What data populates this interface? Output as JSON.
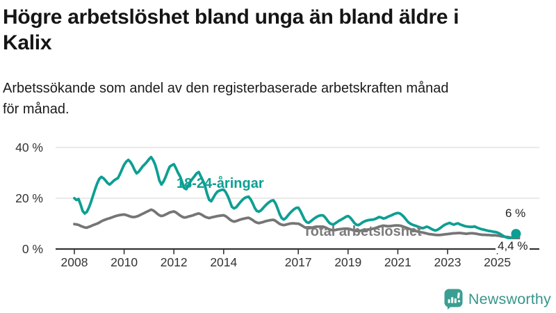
{
  "header": {
    "title_lines": [
      "Högre arbetslöshet bland unga än bland äldre i",
      "Kalix"
    ],
    "subtitle_lines": [
      "Arbetssökande som andel av den registerbaserade arbetskraften månad",
      "för månad."
    ]
  },
  "chart_data": {
    "type": "line",
    "unit": "%",
    "frequency": "monthly",
    "start": "2008-01",
    "end": "2025-10",
    "ylim": [
      0,
      40
    ],
    "y_ticks": [
      0,
      20,
      40
    ],
    "y_tick_suffix": " %",
    "x_ticks": [
      2008,
      2010,
      2012,
      2014,
      2017,
      2019,
      2021,
      2023,
      2025
    ],
    "grid_color": "#dcdcdc",
    "axis_color": "#333333",
    "tick_text_color": "#333333",
    "legend_position": "inline-labels",
    "series": [
      {
        "name": "Total arbetslöshet",
        "color": "#757575",
        "end_value": 4.4,
        "end_label": "4,4 %",
        "values": [
          9.8,
          9.7,
          9.5,
          9.1,
          8.8,
          8.5,
          8.4,
          8.7,
          9.0,
          9.4,
          9.7,
          10.0,
          10.4,
          10.9,
          11.3,
          11.6,
          11.9,
          12.1,
          12.4,
          12.7,
          13.0,
          13.2,
          13.4,
          13.5,
          13.6,
          13.4,
          13.1,
          12.8,
          12.6,
          12.6,
          12.8,
          13.1,
          13.5,
          13.9,
          14.3,
          14.7,
          15.1,
          15.5,
          15.2,
          14.6,
          13.9,
          13.3,
          13.0,
          13.2,
          13.6,
          14.0,
          14.4,
          14.6,
          14.8,
          14.4,
          13.8,
          13.2,
          12.7,
          12.4,
          12.5,
          12.8,
          13.0,
          13.2,
          13.5,
          13.8,
          14.0,
          13.7,
          13.2,
          12.7,
          12.4,
          12.2,
          12.4,
          12.6,
          12.8,
          13.0,
          13.1,
          13.2,
          13.3,
          12.9,
          12.3,
          11.6,
          11.1,
          10.8,
          11.0,
          11.3,
          11.6,
          11.8,
          12.0,
          12.2,
          12.3,
          11.9,
          11.4,
          10.8,
          10.4,
          10.2,
          10.4,
          10.6,
          10.9,
          11.1,
          11.3,
          11.4,
          11.5,
          11.1,
          10.5,
          9.9,
          9.6,
          9.4,
          9.6,
          9.8,
          10.0,
          10.1,
          10.1,
          10.0,
          10.0,
          9.6,
          9.1,
          8.6,
          8.3,
          8.2,
          8.3,
          8.5,
          8.7,
          8.8,
          8.8,
          8.8,
          8.8,
          8.5,
          8.1,
          7.7,
          7.5,
          7.4,
          7.5,
          7.7,
          7.8,
          7.9,
          8.0,
          8.0,
          8.0,
          7.8,
          7.5,
          7.3,
          7.1,
          7.1,
          7.2,
          7.4,
          7.5,
          7.6,
          7.7,
          7.8,
          8.0,
          8.2,
          8.5,
          8.8,
          9.0,
          9.2,
          9.1,
          9.0,
          9.0,
          9.1,
          9.2,
          9.3,
          9.3,
          9.2,
          9.0,
          8.7,
          8.4,
          8.1,
          7.8,
          7.5,
          7.2,
          7.0,
          6.8,
          6.6,
          6.5,
          6.3,
          6.1,
          5.9,
          5.8,
          5.7,
          5.6,
          5.5,
          5.5,
          5.6,
          5.7,
          5.8,
          5.9,
          6.0,
          6.1,
          6.2,
          6.2,
          6.3,
          6.3,
          6.2,
          6.1,
          6.0,
          6.1,
          6.2,
          6.2,
          6.1,
          6.0,
          5.8,
          5.7,
          5.6,
          5.6,
          5.5,
          5.5,
          5.4,
          5.4,
          5.4,
          5.3,
          5.2,
          5.0,
          4.9,
          4.8,
          4.7,
          4.6,
          4.5,
          4.4,
          4.4
        ]
      },
      {
        "name": "18-24-åringar",
        "color": "#0d9f93",
        "end_value": 6.0,
        "end_label": "6 %",
        "values": [
          20.0,
          19.3,
          19.7,
          17.5,
          15.0,
          14.0,
          14.6,
          16.3,
          18.5,
          21.0,
          23.5,
          25.8,
          27.6,
          28.4,
          27.9,
          27.0,
          26.0,
          25.4,
          26.1,
          26.9,
          27.5,
          27.9,
          29.5,
          31.4,
          33.2,
          34.4,
          35.1,
          34.3,
          33.0,
          31.2,
          29.8,
          30.4,
          31.5,
          32.6,
          33.4,
          34.3,
          35.4,
          36.2,
          35.0,
          33.2,
          30.3,
          27.0,
          25.4,
          26.6,
          28.4,
          30.6,
          32.4,
          33.0,
          33.4,
          31.8,
          30.0,
          28.6,
          26.3,
          24.0,
          23.6,
          25.2,
          26.6,
          27.7,
          28.7,
          29.8,
          30.3,
          28.6,
          26.9,
          24.9,
          21.8,
          19.4,
          18.8,
          20.2,
          21.6,
          22.6,
          23.0,
          23.3,
          23.4,
          22.4,
          20.8,
          18.7,
          16.6,
          16.0,
          16.4,
          17.4,
          18.4,
          19.3,
          20.0,
          20.4,
          20.6,
          19.6,
          18.0,
          16.2,
          15.0,
          14.7,
          15.2,
          16.1,
          17.0,
          17.8,
          18.5,
          19.0,
          19.2,
          18.0,
          16.0,
          13.8,
          12.2,
          11.6,
          12.2,
          13.2,
          14.2,
          15.0,
          15.7,
          16.2,
          16.3,
          15.0,
          13.3,
          11.6,
          10.6,
          10.3,
          10.9,
          11.6,
          12.2,
          12.7,
          13.1,
          13.3,
          13.2,
          12.4,
          11.3,
          10.3,
          9.8,
          9.7,
          10.2,
          10.8,
          11.3,
          11.7,
          12.2,
          12.7,
          13.0,
          12.4,
          11.4,
          10.3,
          9.6,
          9.4,
          9.9,
          10.5,
          10.9,
          11.2,
          11.4,
          11.5,
          11.6,
          11.8,
          12.2,
          12.6,
          12.4,
          12.0,
          12.2,
          12.6,
          13.0,
          13.3,
          13.7,
          14.0,
          14.2,
          14.0,
          13.4,
          12.6,
          11.6,
          10.6,
          10.0,
          9.6,
          9.3,
          9.0,
          8.7,
          8.4,
          8.2,
          8.5,
          8.8,
          8.5,
          8.0,
          7.6,
          7.3,
          7.5,
          8.0,
          8.6,
          9.2,
          9.7,
          10.0,
          10.3,
          9.9,
          9.6,
          9.9,
          10.1,
          9.7,
          9.4,
          9.1,
          8.9,
          8.8,
          8.7,
          8.7,
          8.9,
          8.5,
          8.2,
          7.9,
          7.7,
          7.5,
          7.3,
          7.1,
          7.0,
          6.8,
          6.7,
          6.5,
          6.1,
          5.6,
          5.1,
          4.7,
          4.4,
          4.2,
          4.5,
          5.2,
          6.0
        ]
      }
    ]
  },
  "logo": {
    "text": "Newsworthy",
    "icon": "newsworthy-barchart-speech-bubble-icon",
    "icon_color": "#3b9e92",
    "text_color": "#38968c"
  }
}
